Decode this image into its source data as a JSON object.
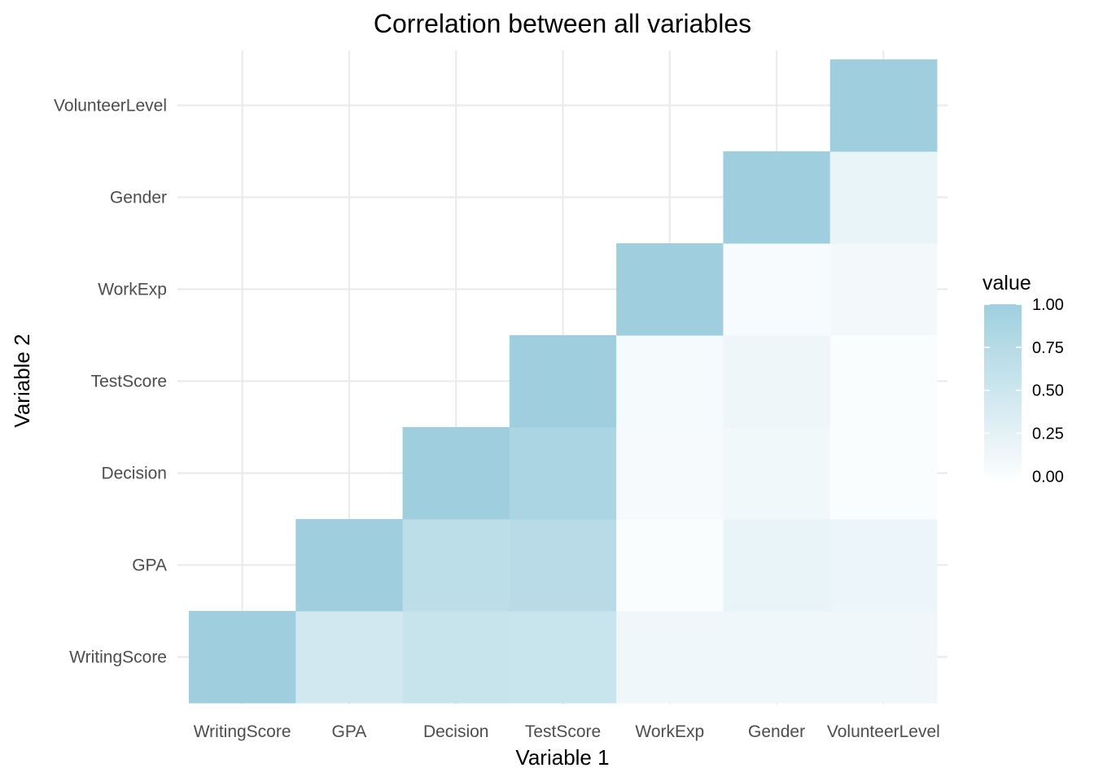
{
  "chart_data": {
    "type": "heatmap",
    "title": "Correlation between all variables",
    "xlabel": "Variable 1",
    "ylabel": "Variable 2",
    "x_categories": [
      "WritingScore",
      "GPA",
      "Decision",
      "TestScore",
      "WorkExp",
      "Gender",
      "VolunteerLevel"
    ],
    "y_categories": [
      "WritingScore",
      "GPA",
      "Decision",
      "TestScore",
      "WorkExp",
      "Gender",
      "VolunteerLevel"
    ],
    "cells": [
      {
        "x": "WritingScore",
        "y": "WritingScore",
        "value": 1.0
      },
      {
        "x": "GPA",
        "y": "WritingScore",
        "value": 0.45
      },
      {
        "x": "Decision",
        "y": "WritingScore",
        "value": 0.56
      },
      {
        "x": "TestScore",
        "y": "WritingScore",
        "value": 0.55
      },
      {
        "x": "WorkExp",
        "y": "WritingScore",
        "value": 0.12
      },
      {
        "x": "Gender",
        "y": "WritingScore",
        "value": 0.12
      },
      {
        "x": "VolunteerLevel",
        "y": "WritingScore",
        "value": 0.13
      },
      {
        "x": "GPA",
        "y": "GPA",
        "value": 1.0
      },
      {
        "x": "Decision",
        "y": "GPA",
        "value": 0.68
      },
      {
        "x": "TestScore",
        "y": "GPA",
        "value": 0.73
      },
      {
        "x": "WorkExp",
        "y": "GPA",
        "value": 0.0
      },
      {
        "x": "Gender",
        "y": "GPA",
        "value": 0.2
      },
      {
        "x": "VolunteerLevel",
        "y": "GPA",
        "value": 0.16
      },
      {
        "x": "Decision",
        "y": "Decision",
        "value": 1.0
      },
      {
        "x": "TestScore",
        "y": "Decision",
        "value": 0.87
      },
      {
        "x": "WorkExp",
        "y": "Decision",
        "value": 0.05
      },
      {
        "x": "Gender",
        "y": "Decision",
        "value": 0.1
      },
      {
        "x": "VolunteerLevel",
        "y": "Decision",
        "value": 0.0
      },
      {
        "x": "TestScore",
        "y": "TestScore",
        "value": 1.0
      },
      {
        "x": "WorkExp",
        "y": "TestScore",
        "value": 0.06
      },
      {
        "x": "Gender",
        "y": "TestScore",
        "value": 0.14
      },
      {
        "x": "VolunteerLevel",
        "y": "TestScore",
        "value": 0.0
      },
      {
        "x": "WorkExp",
        "y": "WorkExp",
        "value": 1.0
      },
      {
        "x": "Gender",
        "y": "WorkExp",
        "value": 0.03
      },
      {
        "x": "VolunteerLevel",
        "y": "WorkExp",
        "value": 0.08
      },
      {
        "x": "Gender",
        "y": "Gender",
        "value": 1.0
      },
      {
        "x": "VolunteerLevel",
        "y": "Gender",
        "value": 0.2
      },
      {
        "x": "VolunteerLevel",
        "y": "VolunteerLevel",
        "value": 1.0
      }
    ],
    "legend": {
      "title": "value",
      "ticks": [
        1.0,
        0.75,
        0.5,
        0.25,
        0.0
      ],
      "tick_labels": [
        "1.00",
        "0.75",
        "0.50",
        "0.25",
        "0.00"
      ],
      "range": [
        -0.05,
        1.0
      ],
      "placement": "right"
    },
    "colors": {
      "low": "#ffffff",
      "high": "#9fcfdf",
      "grid": "#ebebeb"
    },
    "grid": true
  }
}
